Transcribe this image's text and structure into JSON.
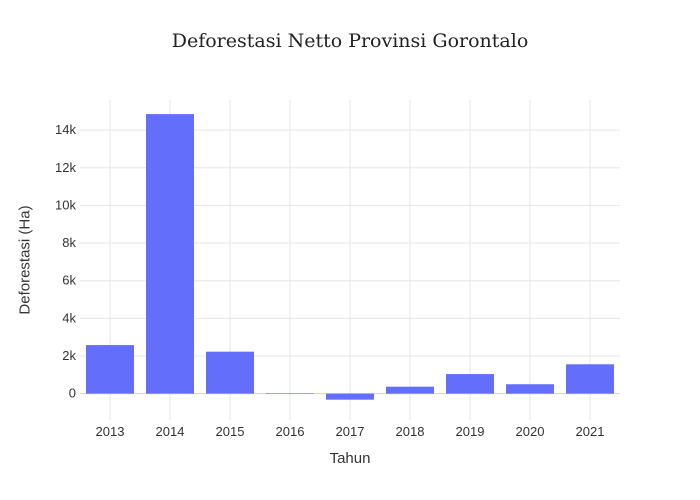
{
  "chart_data": {
    "type": "bar",
    "title": "Deforestasi Netto Provinsi Gorontalo",
    "xlabel": "Tahun",
    "ylabel": "Deforestasi (Ha)",
    "categories": [
      "2013",
      "2014",
      "2015",
      "2016",
      "2017",
      "2018",
      "2019",
      "2020",
      "2021"
    ],
    "values": [
      2580,
      14850,
      2230,
      20,
      -320,
      370,
      1040,
      500,
      1560
    ],
    "ylim": [
      -1400,
      15600
    ],
    "yticks": [
      0,
      2000,
      4000,
      6000,
      8000,
      10000,
      12000,
      14000
    ],
    "ytick_labels": [
      "0",
      "2k",
      "4k",
      "6k",
      "8k",
      "10k",
      "12k",
      "14k"
    ],
    "bar_color": "#636efa",
    "grid": true
  }
}
